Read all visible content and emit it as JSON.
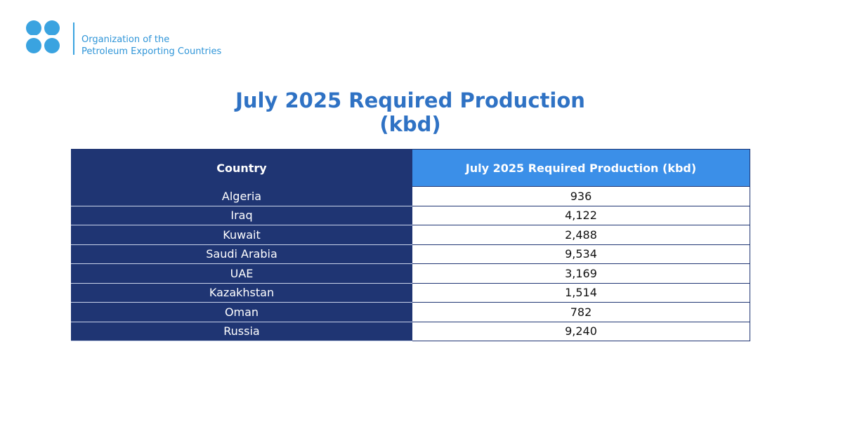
{
  "header": {
    "organization": [
      "Organization of the",
      "Petroleum Exporting Countries"
    ]
  },
  "title": [
    "July 2025 Required Production",
    "(kbd)"
  ],
  "table": {
    "columns": [
      "Country",
      "July 2025 Required Production (kbd)"
    ],
    "rows": [
      [
        "Algeria",
        "936"
      ],
      [
        "Iraq",
        "4,122"
      ],
      [
        "Kuwait",
        "2,488"
      ],
      [
        "Saudi Arabia",
        "9,534"
      ],
      [
        "UAE",
        "3,169"
      ],
      [
        "Kazakhstan",
        "1,514"
      ],
      [
        "Oman",
        "782"
      ],
      [
        "Russia",
        "9,240"
      ]
    ]
  }
}
